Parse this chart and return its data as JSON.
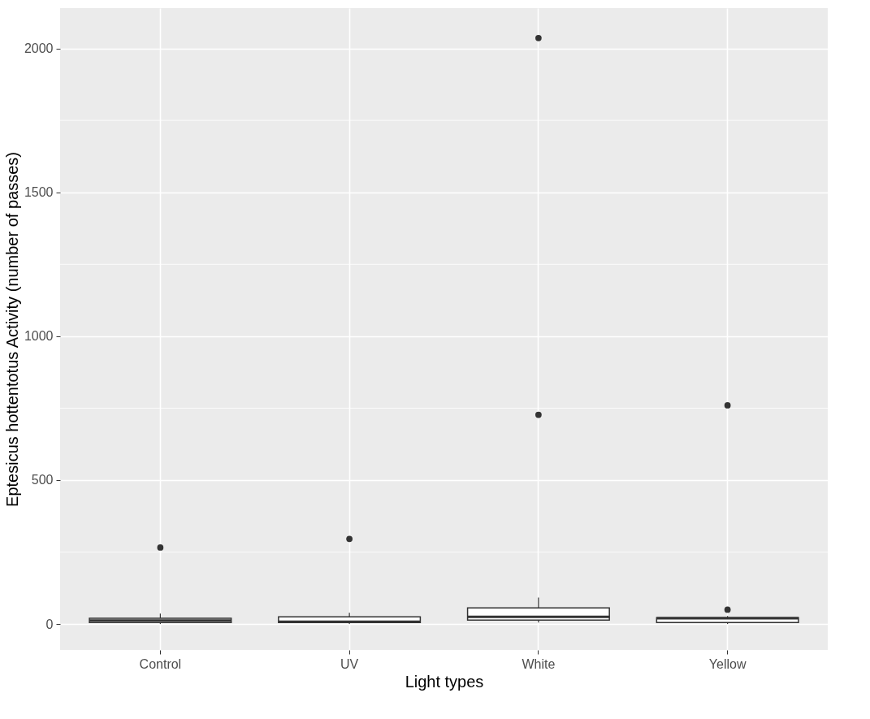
{
  "chart_data": {
    "type": "box",
    "xlabel": "Light types",
    "ylabel": "Eptesicus hottentotus Activity (number of passes)",
    "categories": [
      "Control",
      "UV",
      "White",
      "Yellow"
    ],
    "boxes": [
      {
        "low": 0,
        "q1": 5,
        "median": 12,
        "q3": 20,
        "high": 36,
        "outliers": [
          266
        ]
      },
      {
        "low": 0,
        "q1": 5,
        "median": 8,
        "q3": 25,
        "high": 39,
        "outliers": [
          296
        ]
      },
      {
        "low": 5,
        "q1": 14,
        "median": 25,
        "q3": 56,
        "high": 92,
        "outliers": [
          727,
          2036
        ]
      },
      {
        "low": 0,
        "q1": 5,
        "median": 20,
        "q3": 22,
        "high": 28,
        "outliers": [
          50,
          760
        ]
      }
    ],
    "ylim": [
      -90,
      2140
    ],
    "yticks": [
      0,
      500,
      1000,
      1500,
      2000
    ],
    "grid": true
  }
}
